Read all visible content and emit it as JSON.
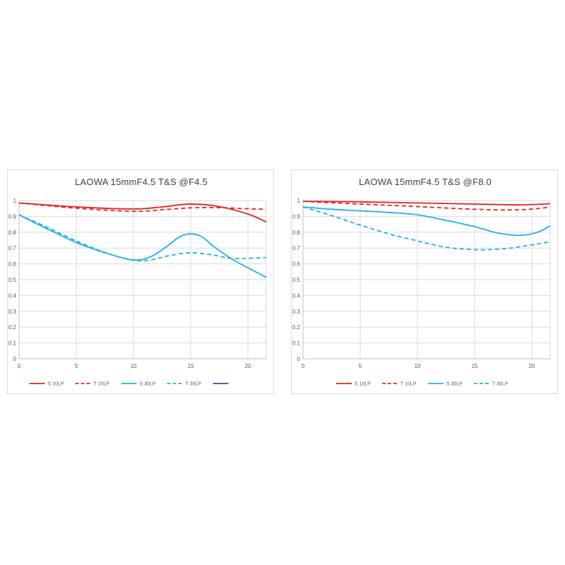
{
  "chart_data": [
    {
      "type": "line",
      "title": "LAOWA  15mmF4.5  T&S      @F4.5",
      "xlim": [
        0,
        21.6
      ],
      "ylim": [
        0,
        1
      ],
      "xticks": [
        "0",
        "5",
        "10",
        "15",
        "20"
      ],
      "yticks": [
        "0",
        "0.1",
        "0.2",
        "0.3",
        "0.4",
        "0.5",
        "0.6",
        "0.7",
        "0.8",
        "0.9",
        "1"
      ],
      "grid": "vertical and horizontal",
      "legend_position": "bottom",
      "series": [
        {
          "name": "S 10LP",
          "color": "#e8231f",
          "dash": "solid",
          "x": [
            0,
            5,
            10,
            12.5,
            15,
            17.5,
            20,
            21.6
          ],
          "y": [
            0.985,
            0.96,
            0.947,
            0.96,
            0.978,
            0.962,
            0.915,
            0.865
          ]
        },
        {
          "name": "T 10LP",
          "color": "#e8231f",
          "dash": "dashed",
          "x": [
            0,
            5,
            10,
            12.5,
            15,
            17.5,
            20,
            21.6
          ],
          "y": [
            0.985,
            0.952,
            0.932,
            0.942,
            0.954,
            0.955,
            0.948,
            0.945
          ]
        },
        {
          "name": "S 30LP",
          "color": "#1fb2e6",
          "dash": "solid",
          "x": [
            0,
            2.5,
            5,
            7.5,
            10,
            11.5,
            13,
            14,
            15,
            16,
            17,
            18.5,
            20,
            21.6
          ],
          "y": [
            0.91,
            0.82,
            0.735,
            0.67,
            0.625,
            0.645,
            0.715,
            0.77,
            0.79,
            0.77,
            0.71,
            0.635,
            0.575,
            0.515
          ]
        },
        {
          "name": "T 30LP",
          "color": "#1fb2e6",
          "dash": "dashed",
          "x": [
            0,
            2.5,
            5,
            7.5,
            10,
            11.5,
            13,
            15,
            17,
            18.5,
            20,
            21.6
          ],
          "y": [
            0.91,
            0.83,
            0.745,
            0.672,
            0.622,
            0.625,
            0.65,
            0.67,
            0.655,
            0.635,
            0.635,
            0.64
          ]
        },
        {
          "name": "",
          "color": "#2f5597",
          "dash": "solid",
          "x": [],
          "y": []
        }
      ]
    },
    {
      "type": "line",
      "title": "LAOWA  15mmF4.5  T&S      @F8.0",
      "xlim": [
        0,
        21.6
      ],
      "ylim": [
        0,
        1
      ],
      "xticks": [
        "0",
        "5",
        "10",
        "15",
        "20"
      ],
      "yticks": [
        "0",
        "0.1",
        "0.2",
        "0.3",
        "0.4",
        "0.5",
        "0.6",
        "0.7",
        "0.8",
        "0.9",
        "1"
      ],
      "grid": "vertical and horizontal",
      "legend_position": "bottom",
      "series": [
        {
          "name": "S 10LP",
          "color": "#e8231f",
          "dash": "solid",
          "x": [
            0,
            5,
            10,
            15,
            19,
            21.6
          ],
          "y": [
            0.995,
            0.992,
            0.985,
            0.978,
            0.973,
            0.98
          ]
        },
        {
          "name": "T 10LP",
          "color": "#e8231f",
          "dash": "dashed",
          "x": [
            0,
            5,
            10,
            15,
            19,
            21.6
          ],
          "y": [
            0.995,
            0.978,
            0.962,
            0.945,
            0.942,
            0.958
          ]
        },
        {
          "name": "S 30LP",
          "color": "#1fb2e6",
          "dash": "solid",
          "x": [
            0,
            2.5,
            5,
            7.5,
            10,
            12.5,
            15,
            17,
            19,
            20.5,
            21.6
          ],
          "y": [
            0.96,
            0.945,
            0.935,
            0.925,
            0.91,
            0.875,
            0.835,
            0.795,
            0.78,
            0.8,
            0.84
          ]
        },
        {
          "name": "T 30LP",
          "color": "#1fb2e6",
          "dash": "dashed",
          "x": [
            0,
            2.5,
            5,
            7.5,
            10,
            12.5,
            15,
            17.5,
            20,
            21.6
          ],
          "y": [
            0.96,
            0.905,
            0.845,
            0.79,
            0.745,
            0.705,
            0.69,
            0.695,
            0.72,
            0.74
          ]
        }
      ]
    }
  ]
}
